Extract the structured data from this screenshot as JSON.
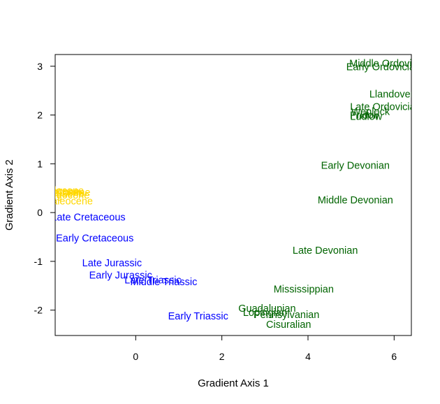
{
  "chart_data": {
    "type": "scatter",
    "title": "",
    "xlabel": "Gradient Axis 1",
    "ylabel": "Gradient Axis 2",
    "xlim": [
      -1.87,
      6.4
    ],
    "ylim": [
      -2.52,
      3.24
    ],
    "x_ticks": [
      0,
      2,
      4,
      6
    ],
    "y_ticks": [
      -2,
      -1,
      0,
      1,
      2,
      3
    ],
    "grid": false,
    "legend": "none",
    "colors": {
      "paleozoic": "#006400",
      "mesozoic": "#0000FF",
      "cenozoic": "#FFD700"
    },
    "points": [
      {
        "label": "Middle Ordovician",
        "x": 5.9,
        "y": 3.06,
        "group": "paleozoic"
      },
      {
        "label": "Early Ordovician",
        "x": 5.75,
        "y": 2.99,
        "group": "paleozoic"
      },
      {
        "label": "Llandovery",
        "x": 6.0,
        "y": 2.43,
        "group": "paleozoic"
      },
      {
        "label": "Late Ordovician",
        "x": 5.8,
        "y": 2.17,
        "group": "paleozoic"
      },
      {
        "label": "Wenlock",
        "x": 5.45,
        "y": 2.07,
        "group": "paleozoic"
      },
      {
        "label": "Pridoli",
        "x": 5.3,
        "y": 2.0,
        "group": "paleozoic"
      },
      {
        "label": "Ludlow",
        "x": 5.35,
        "y": 1.97,
        "group": "paleozoic"
      },
      {
        "label": "Early Devonian",
        "x": 5.1,
        "y": 0.97,
        "group": "paleozoic"
      },
      {
        "label": "Middle Devonian",
        "x": 5.1,
        "y": 0.26,
        "group": "paleozoic"
      },
      {
        "label": "Late Devonian",
        "x": 4.4,
        "y": -0.77,
        "group": "paleozoic"
      },
      {
        "label": "Mississippian",
        "x": 3.9,
        "y": -1.57,
        "group": "paleozoic"
      },
      {
        "label": "Guadalupian",
        "x": 3.05,
        "y": -1.96,
        "group": "paleozoic"
      },
      {
        "label": "Lopingian",
        "x": 3.0,
        "y": -2.05,
        "group": "paleozoic"
      },
      {
        "label": "Pennsylvanian",
        "x": 3.5,
        "y": -2.09,
        "group": "paleozoic"
      },
      {
        "label": "Cisuralian",
        "x": 3.55,
        "y": -2.29,
        "group": "paleozoic"
      },
      {
        "label": "Late Cretaceous",
        "x": -1.1,
        "y": -0.09,
        "group": "mesozoic"
      },
      {
        "label": "Early Cretaceous",
        "x": -0.95,
        "y": -0.52,
        "group": "mesozoic"
      },
      {
        "label": "Late Jurassic",
        "x": -0.55,
        "y": -1.03,
        "group": "mesozoic"
      },
      {
        "label": "Early Jurassic",
        "x": -0.35,
        "y": -1.28,
        "group": "mesozoic"
      },
      {
        "label": "Late Triassic",
        "x": 0.4,
        "y": -1.38,
        "group": "mesozoic"
      },
      {
        "label": "Middle Triassic",
        "x": 0.65,
        "y": -1.42,
        "group": "mesozoic"
      },
      {
        "label": "Early Triassic",
        "x": 1.45,
        "y": -2.12,
        "group": "mesozoic"
      },
      {
        "label": "Holocene",
        "x": -1.7,
        "y": 0.45,
        "group": "cenozoic"
      },
      {
        "label": "Pleistocene",
        "x": -1.8,
        "y": 0.42,
        "group": "cenozoic"
      },
      {
        "label": "Pliocene",
        "x": -1.65,
        "y": 0.39,
        "group": "cenozoic"
      },
      {
        "label": "Miocene",
        "x": -1.75,
        "y": 0.44,
        "group": "cenozoic"
      },
      {
        "label": "Oligocene",
        "x": -1.6,
        "y": 0.36,
        "group": "cenozoic"
      },
      {
        "label": "Eocene",
        "x": -1.45,
        "y": 0.42,
        "group": "cenozoic"
      },
      {
        "label": "Paleocene",
        "x": -1.55,
        "y": 0.24,
        "group": "cenozoic"
      }
    ]
  }
}
